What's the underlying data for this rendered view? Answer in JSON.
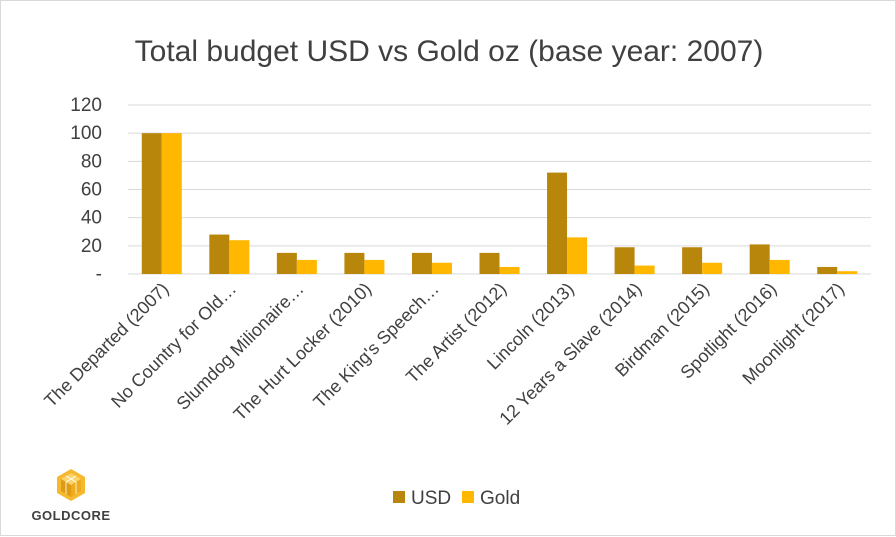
{
  "chart_data": {
    "type": "bar",
    "title": "Total budget USD vs Gold oz (base year: 2007)",
    "categories": [
      "The Departed (2007)",
      "No Country for Old…",
      "Slumdog Milionaire…",
      "The Hurt Locker (2010)",
      "The King's Speech…",
      "The Artist (2012)",
      "Lincoln (2013)",
      "12 Years a Slave (2014)",
      "Birdman (2015)",
      "Spotlight (2016)",
      "Moonlight (2017)"
    ],
    "series": [
      {
        "name": "USD",
        "color": "#b8860b",
        "values": [
          100,
          28,
          15,
          15,
          15,
          15,
          72,
          19,
          19,
          21,
          5
        ]
      },
      {
        "name": "Gold",
        "color": "#ffb700",
        "values": [
          100,
          24,
          10,
          10,
          8,
          5,
          26,
          6,
          8,
          10,
          2
        ]
      }
    ],
    "ylim": [
      0,
      120
    ],
    "yticks": [
      0,
      20,
      40,
      60,
      80,
      100,
      120
    ],
    "ytick_labels": [
      "-",
      "20",
      "40",
      "60",
      "80",
      "100",
      "120"
    ],
    "xlabel": "",
    "ylabel": "",
    "grid": true,
    "legend_position": "bottom"
  },
  "logo": {
    "text": "GoldCore",
    "color": "#f5b82e"
  }
}
